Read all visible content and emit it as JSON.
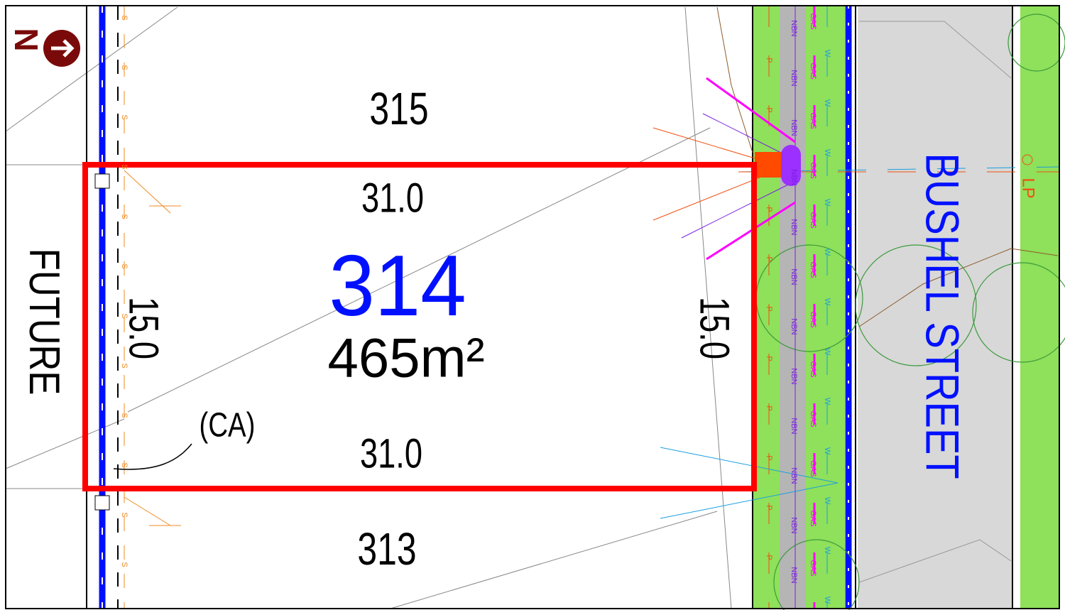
{
  "lots": {
    "north": {
      "number": "315"
    },
    "subject": {
      "number": "314",
      "area": "465m²",
      "top_frontage": "31.0",
      "bottom_frontage": "31.0",
      "left_depth": "15.0",
      "right_depth": "15.0",
      "easement": "(CA)"
    },
    "south": {
      "number": "313"
    }
  },
  "roads": {
    "west": "FUTURE",
    "east": "BUSHEL STREET"
  },
  "north_arrow": "N",
  "light_pole": "LP",
  "utility_labels": {
    "gas": "GAS",
    "nbn": "NBN",
    "water": "W",
    "power": "P",
    "sewer": "S"
  }
}
